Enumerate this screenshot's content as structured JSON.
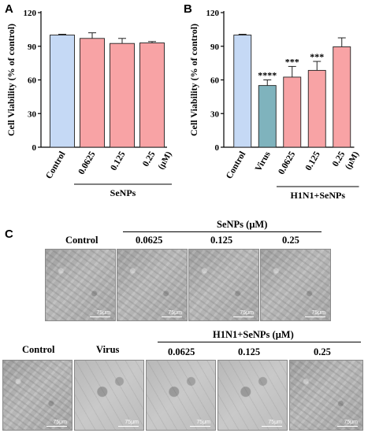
{
  "panels": {
    "a": "A",
    "b": "B",
    "c": "C"
  },
  "chart_data": [
    {
      "type": "bar",
      "ylabel": "Cell Viability (% of control)",
      "ylim": [
        0,
        120
      ],
      "yticks": [
        0,
        30,
        60,
        90,
        120
      ],
      "categories": [
        "Control",
        "0.0625",
        "0.125",
        "0.25"
      ],
      "unit": "(μM)",
      "group_label": "SeNPs",
      "group_span": [
        1,
        3
      ],
      "values": [
        100,
        97,
        92.5,
        93
      ],
      "errors": [
        0.7,
        5,
        4.5,
        1.2
      ],
      "colors": [
        "#c5d9f5",
        "#f8a3a5",
        "#f8a3a5",
        "#f8a3a5"
      ],
      "significance": [
        "",
        "",
        "",
        ""
      ]
    },
    {
      "type": "bar",
      "ylabel": "Cell Viability (% of control)",
      "ylim": [
        0,
        120
      ],
      "yticks": [
        0,
        30,
        60,
        90,
        120
      ],
      "categories": [
        "Control",
        "Virus",
        "0.0625",
        "0.125",
        "0.25"
      ],
      "unit": "(μM)",
      "group_label": "H1N1+SeNPs",
      "group_span": [
        2,
        4
      ],
      "values": [
        100,
        55,
        62.5,
        68.5,
        89.5
      ],
      "errors": [
        0.7,
        5,
        9.5,
        8,
        8
      ],
      "colors": [
        "#c5d9f5",
        "#7fb3bd",
        "#f8a3a5",
        "#f8a3a5",
        "#f8a3a5"
      ],
      "significance": [
        "",
        "****",
        "***",
        "***",
        ""
      ]
    }
  ],
  "micrographs": {
    "row1": {
      "group_label": "SeNPs (μM)",
      "labels": [
        "Control",
        "0.0625",
        "0.125",
        "0.25"
      ]
    },
    "row2": {
      "group_label": "H1N1+SeNPs (μM)",
      "labels": [
        "Control",
        "Virus",
        "0.0625",
        "0.125",
        "0.25"
      ]
    },
    "scale_bar": "75μm"
  }
}
